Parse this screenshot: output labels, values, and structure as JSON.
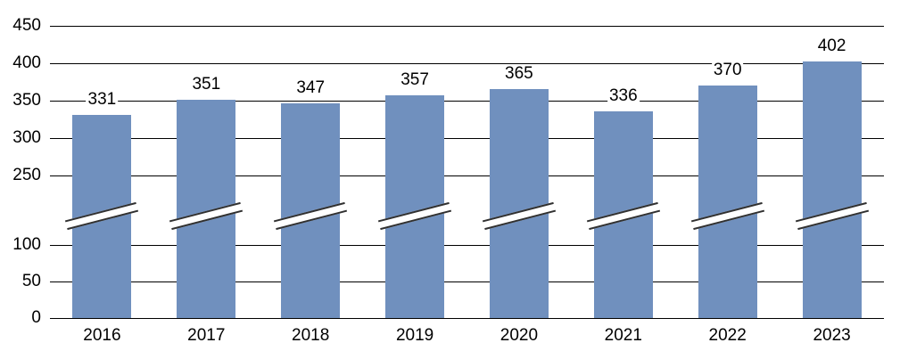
{
  "chart_data": {
    "type": "bar",
    "title": "",
    "xlabel": "",
    "ylabel": "",
    "categories": [
      "2016",
      "2017",
      "2018",
      "2019",
      "2020",
      "2021",
      "2022",
      "2023"
    ],
    "values": [
      331,
      351,
      347,
      357,
      365,
      336,
      370,
      402
    ],
    "data_labels": [
      "331",
      "351",
      "347",
      "357",
      "365",
      "336",
      "370",
      "402"
    ],
    "ytick_labels": [
      "450",
      "400",
      "350",
      "300",
      "250",
      "100",
      "50",
      "0"
    ],
    "ytick_values": [
      450,
      400,
      350,
      300,
      250,
      100,
      50,
      0
    ],
    "ylim": [
      0,
      450
    ],
    "axis_break": {
      "between": [
        100,
        250
      ],
      "marker": "diagonal-slash-through-bars"
    },
    "grid": true,
    "legend": "none",
    "data_labels_shown": true,
    "colors": {
      "bar_fill": "#7090BE",
      "gridline": "#000000",
      "break_line": "#303030",
      "text": "#000000",
      "background": "#FFFFFF"
    }
  }
}
